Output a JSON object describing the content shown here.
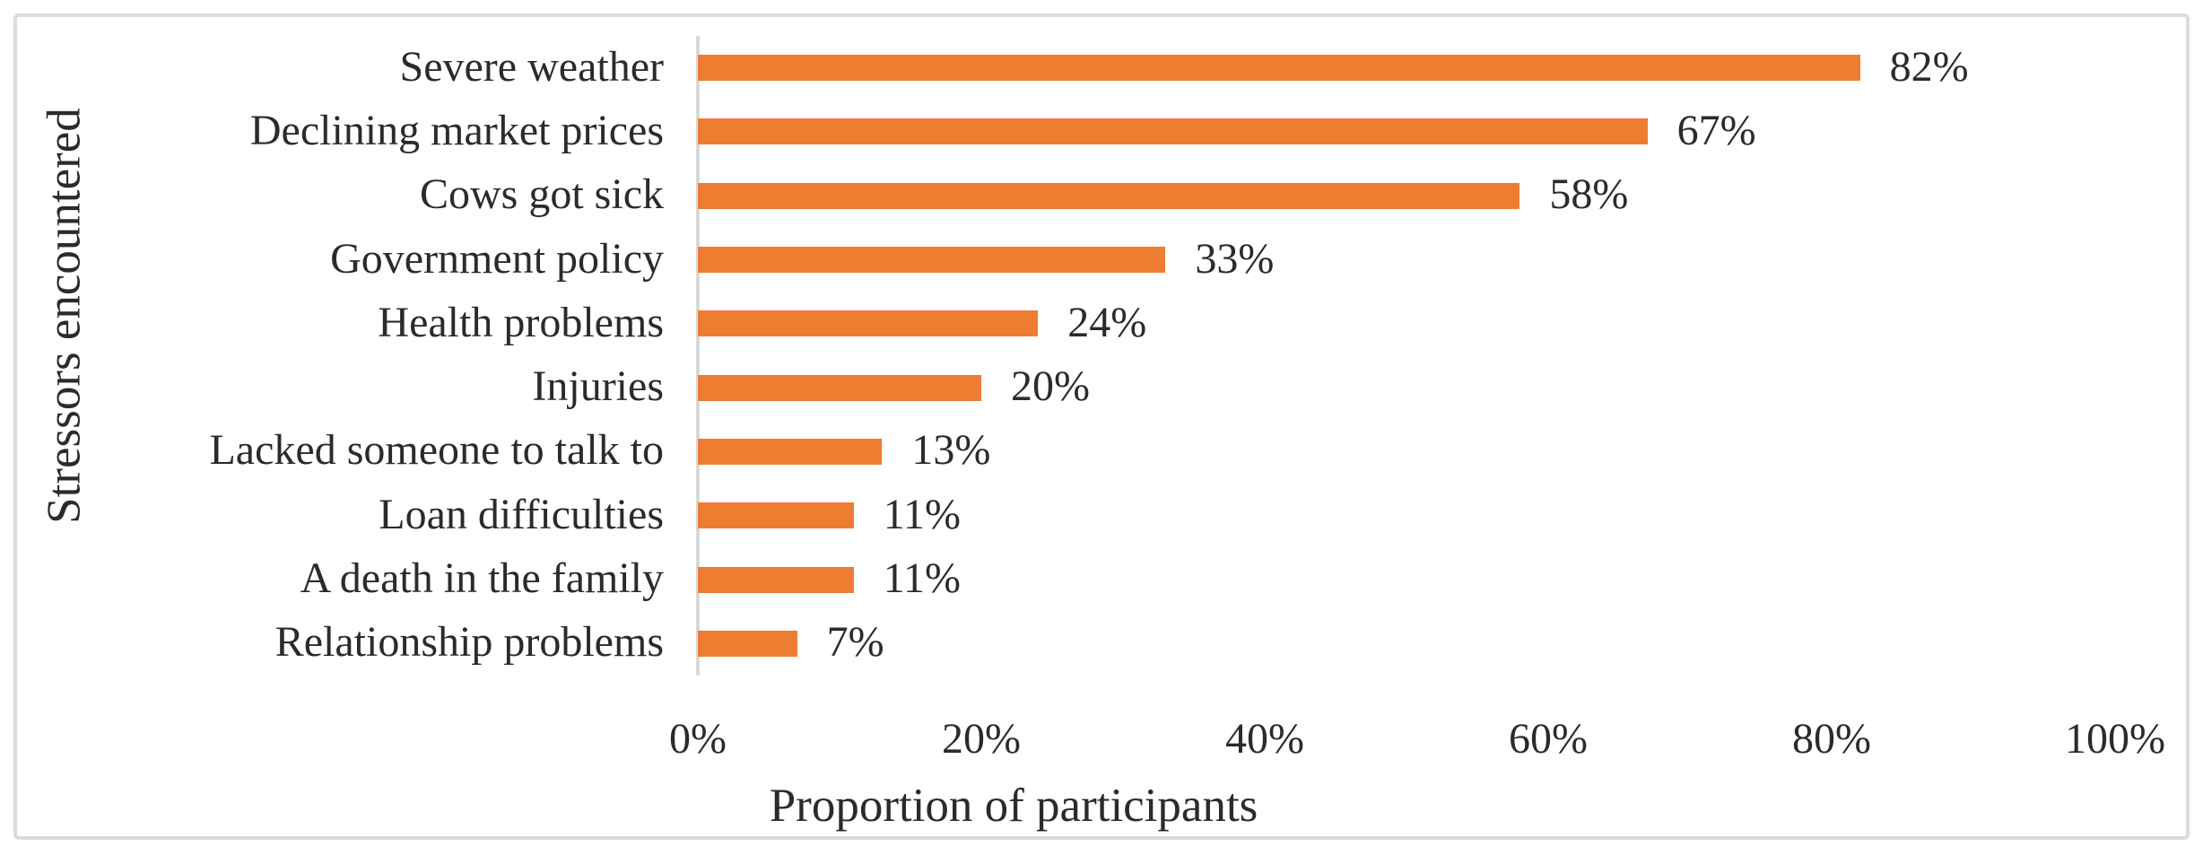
{
  "figure": {
    "background_color": "#ffffff",
    "border_color": "#dcdcdc"
  },
  "chart_data": {
    "type": "bar",
    "orientation": "horizontal",
    "categories": [
      "Severe weather",
      "Declining market prices",
      "Cows got sick",
      "Government policy",
      "Health problems",
      "Injuries",
      "Lacked someone to talk to",
      "Loan difficulties",
      "A death in the family",
      "Relationship problems"
    ],
    "values": [
      82,
      67,
      58,
      33,
      24,
      20,
      13,
      11,
      11,
      7
    ],
    "data_labels": [
      "82%",
      "67%",
      "58%",
      "33%",
      "24%",
      "20%",
      "13%",
      "11%",
      "11%",
      "7%"
    ],
    "x_ticks": [
      {
        "label": "0%",
        "value": 0
      },
      {
        "label": "20%",
        "value": 20
      },
      {
        "label": "40%",
        "value": 40
      },
      {
        "label": "60%",
        "value": 60
      },
      {
        "label": "80%",
        "value": 80
      },
      {
        "label": "100%",
        "value": 100
      }
    ],
    "xlim": [
      0,
      100
    ],
    "xlabel": "Proportion of participants",
    "ylabel": "Stressors encountered",
    "bar_color": "#ed7d31",
    "axis_line_color": "#d9d9d9",
    "text_color": "#2b2b2b",
    "grid": "off",
    "legend": "none"
  }
}
